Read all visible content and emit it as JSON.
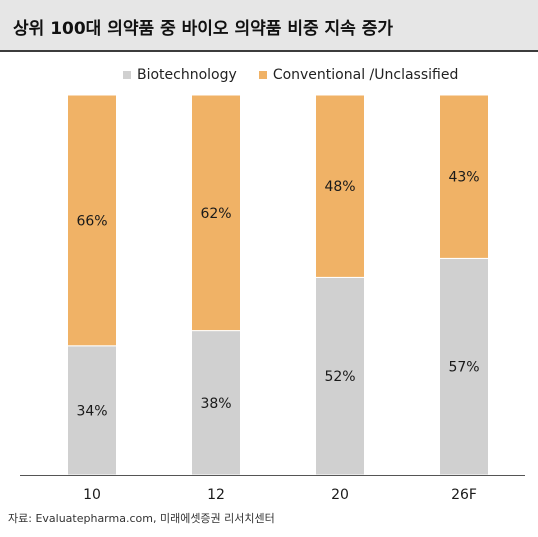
{
  "title": "상위 100대 의약품 중 바이오 의약품 비중 지속 증가",
  "source": "자료: Evaluatepharma.com, 미래에셋증권 리서치센터",
  "colors": {
    "biotech": "#d0d0d0",
    "conventional": "#f0b266"
  },
  "chart_data": {
    "type": "bar",
    "stacked": true,
    "categories": [
      "10",
      "12",
      "20",
      "26F"
    ],
    "series": [
      {
        "name": "Biotechnology",
        "values": [
          34,
          38,
          52,
          57
        ],
        "labels": [
          "34%",
          "38%",
          "52%",
          "57%"
        ]
      },
      {
        "name": "Conventional /Unclassified",
        "values": [
          66,
          62,
          48,
          43
        ],
        "labels": [
          "66%",
          "62%",
          "48%",
          "43%"
        ]
      }
    ],
    "ylim": [
      0,
      100
    ],
    "grid": false,
    "legend_position": "top"
  }
}
